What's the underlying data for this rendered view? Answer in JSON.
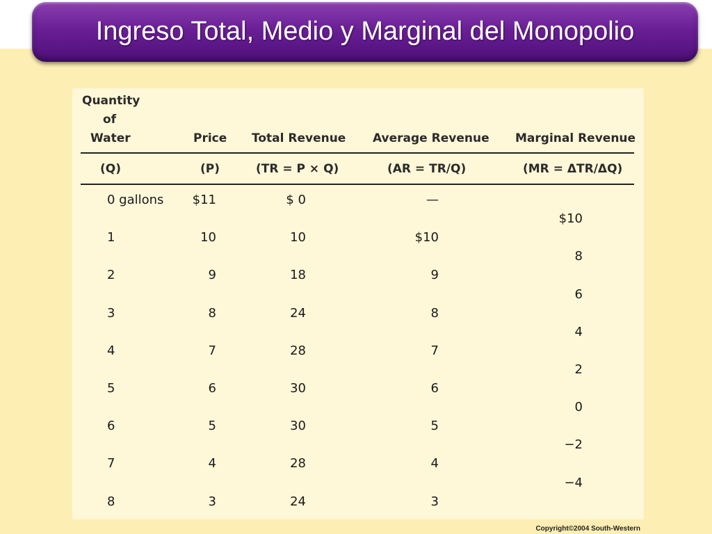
{
  "title": "Ingreso Total, Medio y Marginal del Monopolio",
  "table": {
    "headers": {
      "quantity_line1": "Quantity",
      "quantity_line2": "of",
      "quantity_line3": "Water",
      "price": "Price",
      "total_revenue": "Total Revenue",
      "average_revenue": "Average Revenue",
      "marginal_revenue": "Marginal Revenue"
    },
    "formulas": {
      "quantity": "(Q)",
      "price": "(P)",
      "total_revenue": "(TR = P × Q)",
      "average_revenue": "(AR = TR/Q)",
      "marginal_revenue": "(MR = ΔTR/ΔQ)"
    },
    "rows": [
      {
        "quantity": "0 gallons",
        "price": "$11",
        "total_revenue": "$  0",
        "average_revenue": "—"
      },
      {
        "quantity": "1",
        "price": "10",
        "total_revenue": "10",
        "average_revenue": "$10"
      },
      {
        "quantity": "2",
        "price": "9",
        "total_revenue": "18",
        "average_revenue": "9"
      },
      {
        "quantity": "3",
        "price": "8",
        "total_revenue": "24",
        "average_revenue": "8"
      },
      {
        "quantity": "4",
        "price": "7",
        "total_revenue": "28",
        "average_revenue": "7"
      },
      {
        "quantity": "5",
        "price": "6",
        "total_revenue": "30",
        "average_revenue": "6"
      },
      {
        "quantity": "6",
        "price": "5",
        "total_revenue": "30",
        "average_revenue": "5"
      },
      {
        "quantity": "7",
        "price": "4",
        "total_revenue": "28",
        "average_revenue": "4"
      },
      {
        "quantity": "8",
        "price": "3",
        "total_revenue": "24",
        "average_revenue": "3"
      }
    ],
    "marginal_revenue": [
      "$10",
      "8",
      "6",
      "4",
      "2",
      "0",
      "−2",
      "−4"
    ]
  },
  "copyright": "Copyright©2004  South-Western"
}
